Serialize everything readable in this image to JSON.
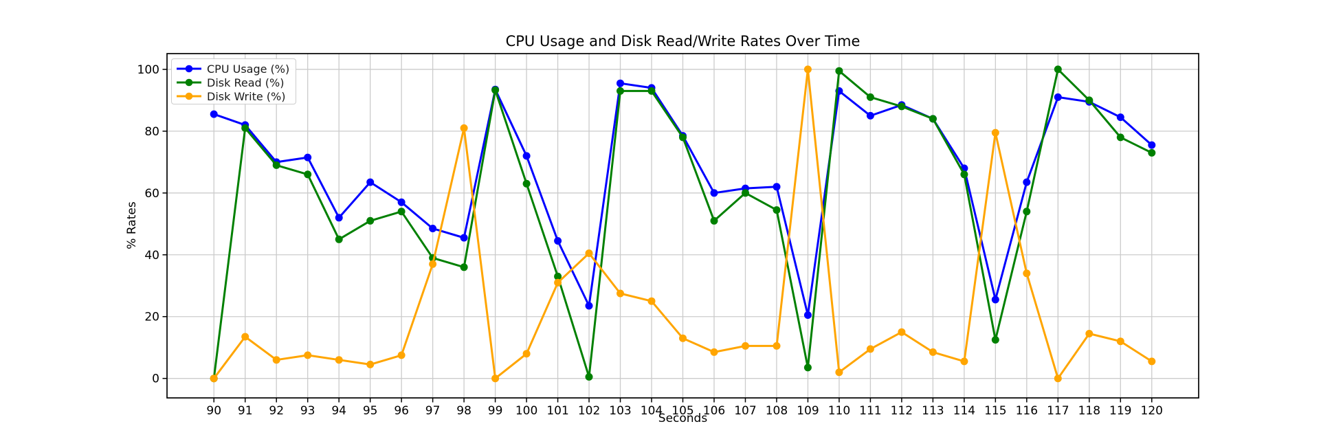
{
  "figure": {
    "title": "CPU Usage and Disk Read/Write Rates Over Time",
    "xlabel": "Seconds",
    "ylabel": "% Rates"
  },
  "legend": {
    "position": "upper left",
    "items": [
      "CPU Usage (%)",
      "Disk Read (%)",
      "Disk Write (%)"
    ]
  },
  "chart_data": {
    "type": "line",
    "title": "CPU Usage and Disk Read/Write Rates Over Time",
    "xlabel": "Seconds",
    "ylabel": "% Rates",
    "grid": true,
    "legend_position": "upper left",
    "x": [
      90,
      91,
      92,
      93,
      94,
      95,
      96,
      97,
      98,
      99,
      100,
      101,
      102,
      103,
      104,
      105,
      106,
      107,
      108,
      109,
      110,
      111,
      112,
      113,
      114,
      115,
      116,
      117,
      118,
      119,
      120
    ],
    "xticks": [
      90,
      91,
      92,
      93,
      94,
      95,
      96,
      97,
      98,
      99,
      100,
      101,
      102,
      103,
      104,
      105,
      106,
      107,
      108,
      109,
      110,
      111,
      112,
      113,
      114,
      115,
      116,
      117,
      118,
      119,
      120
    ],
    "yticks": [
      0,
      20,
      40,
      60,
      80,
      100
    ],
    "xlim": [
      88.5,
      121.5
    ],
    "ylim": [
      -6.3,
      105.1
    ],
    "grid_color": "#cbcbcb",
    "series": [
      {
        "name": "CPU Usage (%)",
        "color": "#0000ff",
        "marker": "o",
        "values": [
          85.5,
          82,
          70,
          71.5,
          52,
          63.5,
          57,
          48.5,
          45.5,
          93.5,
          72,
          44.5,
          23.5,
          95.5,
          94,
          78.5,
          60,
          61.5,
          62,
          20.5,
          93,
          85,
          88.5,
          84,
          68,
          25.5,
          63.5,
          91,
          89.5,
          84.5,
          75.5
        ]
      },
      {
        "name": "Disk Read (%)",
        "color": "#008000",
        "marker": "o",
        "values": [
          0,
          81,
          69,
          66,
          45,
          51,
          54,
          39,
          36,
          93.3,
          63,
          33,
          0.5,
          93,
          93,
          78,
          51,
          60,
          54.5,
          3.5,
          99.5,
          91,
          88,
          84,
          66,
          12.5,
          54,
          100,
          90,
          78,
          73
        ]
      },
      {
        "name": "Disk Write (%)",
        "color": "#ffa500",
        "marker": "o",
        "values": [
          0,
          13.5,
          6,
          7.5,
          6,
          4.5,
          7.5,
          37,
          81,
          0,
          8,
          31,
          40.5,
          27.5,
          25,
          13,
          8.5,
          10.5,
          10.5,
          100,
          2,
          9.5,
          15,
          8.5,
          5.5,
          79.5,
          34,
          0,
          14.5,
          12,
          5.5
        ]
      }
    ]
  }
}
